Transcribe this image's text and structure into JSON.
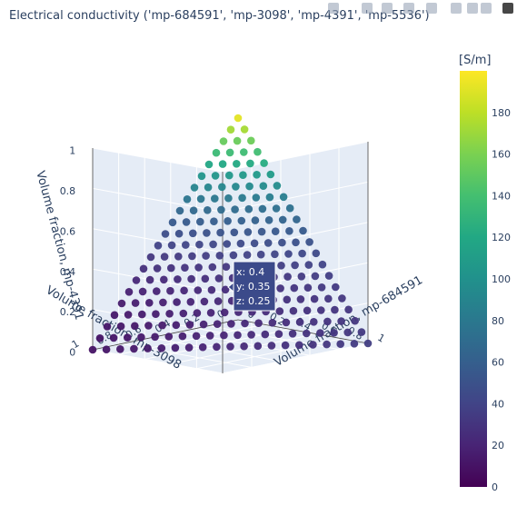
{
  "chart_data": {
    "type": "scatter3d",
    "title": "Electrical conductivity ('mp-684591', 'mp-3098', 'mp-4391', 'mp-5536')",
    "axes": {
      "x": {
        "label": "Volume fraction, mp-684591",
        "ticks": [
          "0",
          "0.2",
          "0.4",
          "0.6",
          "0.8",
          "1"
        ],
        "range": [
          0,
          1
        ]
      },
      "y": {
        "label": "Volume fraction, mp-3098",
        "ticks": [
          "0",
          "0.2",
          "0.4",
          "0.6",
          "0.8",
          "1"
        ],
        "range": [
          0,
          1
        ]
      },
      "z": {
        "label": "Volume fraction, mp-4391",
        "ticks": [
          "0",
          "0.2",
          "0.4",
          "0.6",
          "0.8",
          "1"
        ],
        "range": [
          0,
          1
        ]
      }
    },
    "grid": true,
    "colorbar": {
      "title": "[S/m]",
      "colorscale": "viridis",
      "range": [
        0,
        200
      ],
      "ticks": [
        "0",
        "20",
        "40",
        "60",
        "80",
        "100",
        "120",
        "140",
        "160",
        "180"
      ]
    },
    "sampling": {
      "step": 0.05,
      "constraint": "x + y + z <= 1"
    },
    "hover": {
      "x": "0.4",
      "y": "0.35",
      "z": "0.25",
      "labels": [
        "x: 0.4",
        "y: 0.35",
        "z: 0.25"
      ]
    }
  },
  "colors": {
    "scene_bg": "#e5ecf6",
    "grid": "#ffffff",
    "text": "#2a3f5f",
    "tooltip_bg": "#3b4a8a"
  },
  "modebar": {
    "icons": [
      "camera-icon",
      "zoom-icon",
      "pan-icon",
      "orbit-icon",
      "turntable-icon",
      "reset-icon",
      "home-icon",
      "hover-icon",
      "logo-icon"
    ]
  }
}
